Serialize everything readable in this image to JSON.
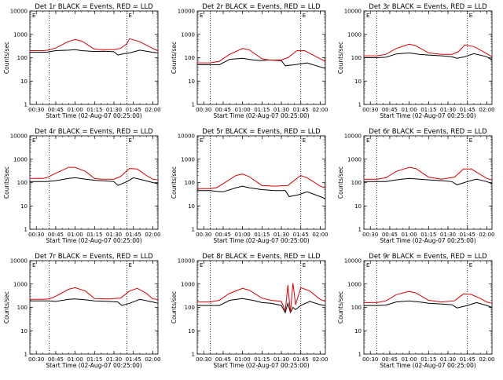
{
  "figure": {
    "x_label": "Start Time (02-Aug-07 00:25:00)",
    "y_label": "Counts/sec",
    "corner_mark": "E"
  },
  "chart_data": [
    {
      "type": "line",
      "title": "Det 1r BLACK = Events, RED = LLD",
      "xlabel": "Start Time (02-Aug-07 00:25:00)",
      "ylabel": "Counts/sec",
      "x_ticks": [
        "00:30",
        "00:45",
        "01:00",
        "01:15",
        "01:30",
        "01:45",
        "02:00"
      ],
      "y_ticks": [
        "1",
        "10",
        "100",
        "1000",
        "10000"
      ],
      "y_scale": "log",
      "ylim": [
        1,
        10000
      ],
      "xlim": [
        "00:25",
        "02:04"
      ],
      "grid": false,
      "vlines": [
        "00:40",
        "01:40"
      ],
      "series": [
        {
          "key": "events",
          "color": "#000000",
          "x": [
            "00:25",
            "00:35",
            "00:39",
            "00:45",
            "00:55",
            "01:00",
            "01:05",
            "01:15",
            "01:22",
            "01:30",
            "01:33",
            "01:38",
            "01:42",
            "01:50",
            "02:00",
            "02:04"
          ],
          "y": [
            170,
            170,
            175,
            200,
            210,
            220,
            200,
            185,
            190,
            180,
            130,
            150,
            160,
            210,
            170,
            160
          ]
        },
        {
          "key": "lld",
          "color": "#dd0000",
          "x": [
            "00:25",
            "00:35",
            "00:39",
            "00:45",
            "00:55",
            "01:00",
            "01:05",
            "01:15",
            "01:22",
            "01:30",
            "01:35",
            "01:40",
            "01:42",
            "01:50",
            "02:00",
            "02:04"
          ],
          "y": [
            200,
            200,
            210,
            260,
            500,
            600,
            520,
            230,
            220,
            220,
            250,
            400,
            650,
            480,
            250,
            200
          ]
        }
      ]
    },
    {
      "type": "line",
      "title": "Det 2r BLACK = Events, RED = LLD",
      "xlabel": "Start Time (02-Aug-07 00:25:00)",
      "ylabel": "Counts/sec",
      "x_ticks": [
        "00:30",
        "00:45",
        "01:00",
        "01:15",
        "01:30",
        "01:45",
        "02:00"
      ],
      "y_ticks": [
        "1",
        "10",
        "100",
        "1000",
        "10000"
      ],
      "y_scale": "log",
      "ylim": [
        1,
        10000
      ],
      "xlim": [
        "00:25",
        "02:04"
      ],
      "grid": false,
      "vlines": [
        "00:35",
        "01:45"
      ],
      "series": [
        {
          "key": "events",
          "color": "#000000",
          "x": [
            "00:25",
            "00:35",
            "00:42",
            "00:50",
            "01:00",
            "01:08",
            "01:15",
            "01:20",
            "01:30",
            "01:33",
            "01:40",
            "01:50",
            "02:00",
            "02:04"
          ],
          "y": [
            50,
            50,
            50,
            85,
            95,
            80,
            75,
            80,
            75,
            45,
            50,
            60,
            40,
            35
          ]
        },
        {
          "key": "lld",
          "color": "#dd0000",
          "x": [
            "00:25",
            "00:35",
            "00:42",
            "00:50",
            "01:00",
            "01:05",
            "01:15",
            "01:20",
            "01:30",
            "01:35",
            "01:42",
            "01:48",
            "02:00",
            "02:04"
          ],
          "y": [
            60,
            60,
            70,
            140,
            250,
            220,
            90,
            80,
            80,
            100,
            200,
            200,
            90,
            70
          ]
        }
      ]
    },
    {
      "type": "line",
      "title": "Det 3r BLACK = Events, RED = LLD",
      "xlabel": "Start Time (02-Aug-07 00:25:00)",
      "ylabel": "Counts/sec",
      "x_ticks": [
        "00:30",
        "00:45",
        "01:00",
        "01:15",
        "01:30",
        "01:45",
        "02:00"
      ],
      "y_ticks": [
        "1",
        "10",
        "100",
        "1000",
        "10000"
      ],
      "y_scale": "log",
      "ylim": [
        1,
        10000
      ],
      "xlim": [
        "00:25",
        "02:04"
      ],
      "grid": false,
      "vlines": [
        "00:35",
        "01:45"
      ],
      "series": [
        {
          "key": "events",
          "color": "#000000",
          "x": [
            "00:25",
            "00:35",
            "00:42",
            "00:50",
            "01:00",
            "01:08",
            "01:15",
            "01:25",
            "01:33",
            "01:37",
            "01:43",
            "01:50",
            "02:00",
            "02:04"
          ],
          "y": [
            100,
            100,
            105,
            145,
            160,
            140,
            130,
            120,
            110,
            95,
            110,
            150,
            110,
            80
          ]
        },
        {
          "key": "lld",
          "color": "#dd0000",
          "x": [
            "00:25",
            "00:35",
            "00:42",
            "00:50",
            "01:00",
            "01:05",
            "01:15",
            "01:25",
            "01:33",
            "01:38",
            "01:43",
            "01:50",
            "02:00",
            "02:04"
          ],
          "y": [
            120,
            120,
            140,
            250,
            380,
            330,
            160,
            140,
            140,
            180,
            350,
            300,
            150,
            110
          ]
        }
      ]
    },
    {
      "type": "line",
      "title": "Det 4r BLACK = Events, RED = LLD",
      "xlabel": "Start Time (02-Aug-07 00:25:00)",
      "ylabel": "Counts/sec",
      "x_ticks": [
        "00:30",
        "00:45",
        "01:00",
        "01:15",
        "01:30",
        "01:45",
        "02:00"
      ],
      "y_ticks": [
        "1",
        "10",
        "100",
        "1000",
        "10000"
      ],
      "y_scale": "log",
      "ylim": [
        1,
        10000
      ],
      "xlim": [
        "00:25",
        "02:04"
      ],
      "grid": false,
      "vlines": [
        "00:40",
        "01:40"
      ],
      "series": [
        {
          "key": "events",
          "color": "#000000",
          "x": [
            "00:25",
            "00:35",
            "00:38",
            "00:45",
            "00:55",
            "01:00",
            "01:08",
            "01:15",
            "01:20",
            "01:30",
            "01:33",
            "01:40",
            "01:45",
            "01:52",
            "02:00",
            "02:04"
          ],
          "y": [
            110,
            110,
            110,
            120,
            150,
            160,
            140,
            125,
            120,
            110,
            75,
            110,
            160,
            130,
            100,
            90
          ]
        },
        {
          "key": "lld",
          "color": "#dd0000",
          "x": [
            "00:25",
            "00:35",
            "00:38",
            "00:45",
            "00:55",
            "01:00",
            "01:08",
            "01:15",
            "01:20",
            "01:30",
            "01:35",
            "01:42",
            "01:48",
            "01:55",
            "02:00",
            "02:04"
          ],
          "y": [
            150,
            150,
            160,
            250,
            450,
            450,
            300,
            150,
            140,
            140,
            180,
            400,
            380,
            200,
            140,
            130
          ]
        }
      ]
    },
    {
      "type": "line",
      "title": "Det 5r BLACK = Events, RED = LLD",
      "xlabel": "Start Time (02-Aug-07 00:25:00)",
      "ylabel": "Counts/sec",
      "x_ticks": [
        "00:30",
        "00:45",
        "01:00",
        "01:15",
        "01:30",
        "01:45",
        "02:00"
      ],
      "y_ticks": [
        "1",
        "10",
        "100",
        "1000",
        "10000"
      ],
      "y_scale": "log",
      "ylim": [
        1,
        10000
      ],
      "xlim": [
        "00:25",
        "02:04"
      ],
      "grid": false,
      "vlines": [
        "00:35",
        "01:45"
      ],
      "series": [
        {
          "key": "events",
          "color": "#000000",
          "x": [
            "00:25",
            "00:35",
            "00:40",
            "00:45",
            "00:55",
            "01:00",
            "01:05",
            "01:15",
            "01:25",
            "01:33",
            "01:36",
            "01:43",
            "01:50",
            "02:00",
            "02:04"
          ],
          "y": [
            45,
            45,
            42,
            40,
            60,
            70,
            60,
            50,
            45,
            45,
            25,
            30,
            40,
            25,
            20
          ]
        },
        {
          "key": "lld",
          "color": "#dd0000",
          "x": [
            "00:25",
            "00:35",
            "00:40",
            "00:45",
            "00:55",
            "01:00",
            "01:05",
            "01:15",
            "01:25",
            "01:35",
            "01:45",
            "01:50",
            "02:00",
            "02:04"
          ],
          "y": [
            55,
            55,
            60,
            90,
            200,
            230,
            180,
            75,
            70,
            75,
            200,
            160,
            70,
            60
          ]
        }
      ]
    },
    {
      "type": "line",
      "title": "Det 6r BLACK = Events, RED = LLD",
      "xlabel": "Start Time (02-Aug-07 00:25:00)",
      "ylabel": "Counts/sec",
      "x_ticks": [
        "00:30",
        "00:45",
        "01:00",
        "01:15",
        "01:30",
        "01:45",
        "02:00"
      ],
      "y_ticks": [
        "1",
        "10",
        "100",
        "1000",
        "10000"
      ],
      "y_scale": "log",
      "ylim": [
        1,
        10000
      ],
      "xlim": [
        "00:25",
        "02:04"
      ],
      "grid": false,
      "vlines": [
        "00:35",
        "01:45"
      ],
      "series": [
        {
          "key": "events",
          "color": "#000000",
          "x": [
            "00:25",
            "00:35",
            "00:42",
            "00:50",
            "01:00",
            "01:08",
            "01:15",
            "01:25",
            "01:33",
            "01:37",
            "01:45",
            "01:52",
            "02:00",
            "02:04"
          ],
          "y": [
            110,
            110,
            110,
            130,
            150,
            140,
            130,
            120,
            110,
            80,
            110,
            140,
            110,
            90
          ]
        },
        {
          "key": "lld",
          "color": "#dd0000",
          "x": [
            "00:25",
            "00:35",
            "00:42",
            "00:50",
            "01:00",
            "01:05",
            "01:15",
            "01:25",
            "01:35",
            "01:42",
            "01:48",
            "01:55",
            "02:00",
            "02:04"
          ],
          "y": [
            140,
            140,
            160,
            300,
            450,
            400,
            170,
            140,
            170,
            380,
            380,
            220,
            150,
            130
          ]
        }
      ]
    },
    {
      "type": "line",
      "title": "Det 7r BLACK = Events, RED = LLD",
      "xlabel": "Start Time (02-Aug-07 00:25:00)",
      "ylabel": "Counts/sec",
      "x_ticks": [
        "00:30",
        "00:45",
        "01:00",
        "01:15",
        "01:30",
        "01:45",
        "02:00"
      ],
      "y_ticks": [
        "1",
        "10",
        "100",
        "1000",
        "10000"
      ],
      "y_scale": "log",
      "ylim": [
        1,
        10000
      ],
      "xlim": [
        "00:25",
        "02:04"
      ],
      "grid": false,
      "vlines": [
        "00:40",
        "01:40"
      ],
      "series": [
        {
          "key": "events",
          "color": "#000000",
          "x": [
            "00:25",
            "00:35",
            "00:40",
            "00:45",
            "00:55",
            "01:00",
            "01:08",
            "01:15",
            "01:25",
            "01:33",
            "01:36",
            "01:42",
            "01:50",
            "02:00",
            "02:04"
          ],
          "y": [
            190,
            190,
            190,
            180,
            220,
            230,
            210,
            190,
            180,
            170,
            120,
            150,
            220,
            170,
            150
          ]
        },
        {
          "key": "lld",
          "color": "#dd0000",
          "x": [
            "00:25",
            "00:35",
            "00:40",
            "00:45",
            "00:55",
            "01:00",
            "01:08",
            "01:15",
            "01:25",
            "01:35",
            "01:42",
            "01:48",
            "01:55",
            "02:00",
            "02:04"
          ],
          "y": [
            220,
            220,
            230,
            300,
            600,
            700,
            500,
            240,
            230,
            250,
            500,
            650,
            400,
            230,
            220
          ]
        }
      ]
    },
    {
      "type": "line",
      "title": "Det 8r BLACK = Events, RED = LLD",
      "xlabel": "Start Time (02-Aug-07 00:25:00)",
      "ylabel": "Counts/sec",
      "x_ticks": [
        "00:30",
        "00:45",
        "01:00",
        "01:15",
        "01:30",
        "01:45",
        "02:00"
      ],
      "y_ticks": [
        "1",
        "10",
        "100",
        "1000",
        "10000"
      ],
      "y_scale": "log",
      "ylim": [
        1,
        10000
      ],
      "xlim": [
        "00:25",
        "02:04"
      ],
      "grid": false,
      "vlines": [
        "00:35",
        "01:45"
      ],
      "series": [
        {
          "key": "events",
          "color": "#000000",
          "x": [
            "00:25",
            "00:35",
            "00:42",
            "00:50",
            "01:00",
            "01:08",
            "01:15",
            "01:22",
            "01:30",
            "01:33",
            "01:35",
            "01:37",
            "01:39",
            "01:41",
            "01:45",
            "01:52",
            "02:00",
            "02:04"
          ],
          "y": [
            120,
            120,
            120,
            200,
            240,
            200,
            160,
            150,
            120,
            60,
            150,
            60,
            100,
            80,
            120,
            180,
            130,
            120
          ]
        },
        {
          "key": "lld",
          "color": "#dd0000",
          "x": [
            "00:25",
            "00:35",
            "00:42",
            "00:50",
            "01:00",
            "01:05",
            "01:15",
            "01:22",
            "01:30",
            "01:33",
            "01:35",
            "01:37",
            "01:39",
            "01:41",
            "01:45",
            "01:52",
            "02:00",
            "02:04"
          ],
          "y": [
            170,
            170,
            200,
            400,
            650,
            550,
            250,
            200,
            180,
            70,
            900,
            60,
            1100,
            130,
            700,
            500,
            220,
            180
          ]
        }
      ]
    },
    {
      "type": "line",
      "title": "Det 9r BLACK = Events, RED = LLD",
      "xlabel": "Start Time (02-Aug-07 00:25:00)",
      "ylabel": "Counts/sec",
      "x_ticks": [
        "00:30",
        "00:45",
        "01:00",
        "01:15",
        "01:30",
        "01:45",
        "02:00"
      ],
      "y_ticks": [
        "1",
        "10",
        "100",
        "1000",
        "10000"
      ],
      "y_scale": "log",
      "ylim": [
        1,
        10000
      ],
      "xlim": [
        "00:25",
        "02:04"
      ],
      "grid": false,
      "vlines": [
        "00:35",
        "01:45"
      ],
      "series": [
        {
          "key": "events",
          "color": "#000000",
          "x": [
            "00:25",
            "00:35",
            "00:42",
            "00:50",
            "01:00",
            "01:08",
            "01:15",
            "01:25",
            "01:33",
            "01:37",
            "01:45",
            "01:52",
            "02:00",
            "02:04"
          ],
          "y": [
            120,
            120,
            125,
            170,
            190,
            170,
            150,
            140,
            130,
            95,
            120,
            160,
            120,
            100
          ]
        },
        {
          "key": "lld",
          "color": "#dd0000",
          "x": [
            "00:25",
            "00:35",
            "00:42",
            "00:50",
            "01:00",
            "01:05",
            "01:15",
            "01:25",
            "01:35",
            "01:42",
            "01:48",
            "01:55",
            "02:00",
            "02:04"
          ],
          "y": [
            160,
            160,
            190,
            350,
            480,
            420,
            200,
            170,
            190,
            380,
            360,
            240,
            170,
            150
          ]
        }
      ]
    }
  ]
}
